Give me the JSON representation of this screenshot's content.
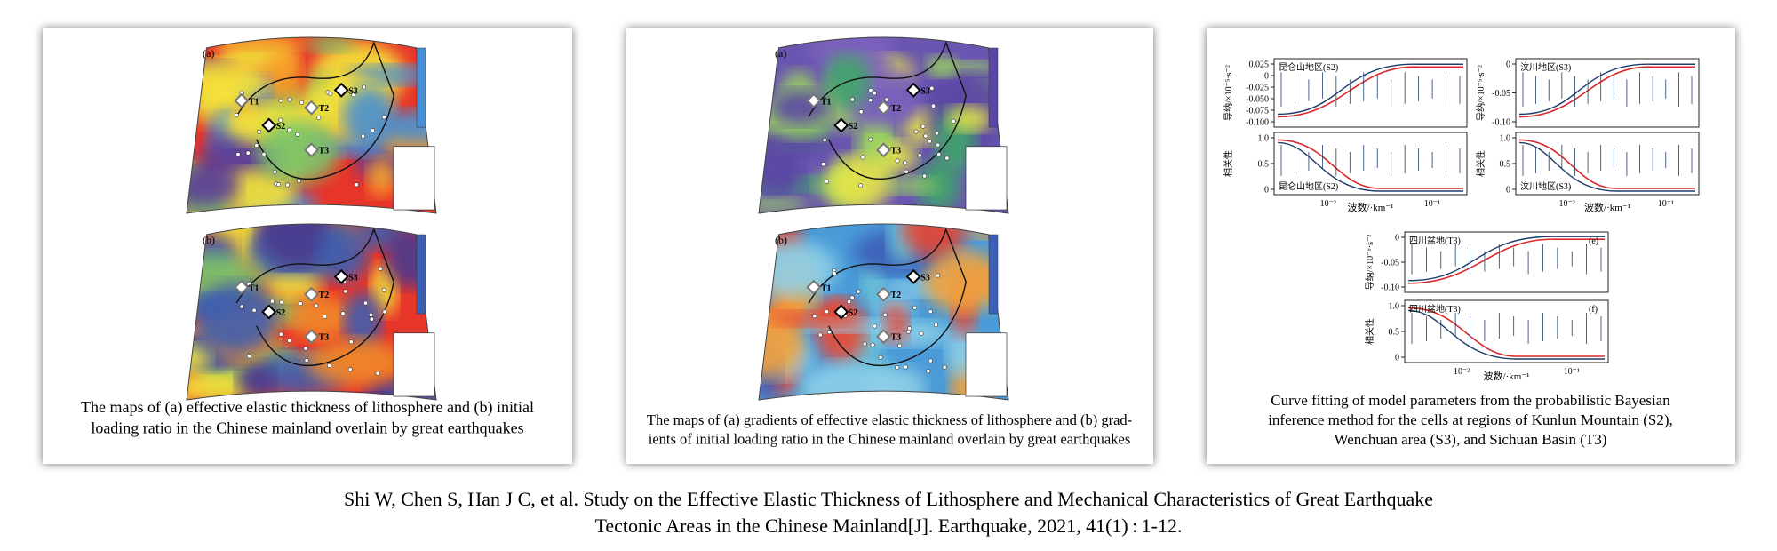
{
  "panels": [
    {
      "map_labels": [
        "(a)",
        "(b)"
      ],
      "markers": [
        "T1",
        "S2",
        "T2",
        "S3",
        "T3"
      ],
      "caption": [
        "The maps of (a) effective elastic thickness of lithosphere and (b) initial",
        "loading  ratio  in the Chinese mainland overlain by great earthquakes"
      ]
    },
    {
      "map_labels": [
        "(a)",
        "(b)"
      ],
      "markers": [
        "T1",
        "S2",
        "T2",
        "S3",
        "T3"
      ],
      "caption": [
        "The maps of (a) gradients of effective elastic thickness of lithosphere and (b) grad-",
        "ients of initial loading ratio in the Chinese mainland overlain by great earthquakes"
      ]
    },
    {
      "ylabel_admittance": "导纳/×10⁻⁵·s⁻²",
      "ylabel_coherence": "相关性",
      "xlabel": "波数/·km⁻¹",
      "xticks": [
        "10⁻²",
        "10⁻¹"
      ],
      "charts": [
        {
          "region": "昆仑山地区(S2)",
          "admittance_ticks": [
            "0.025",
            "0",
            "-0.025",
            "-0.050",
            "-0.075",
            "-0.100"
          ],
          "coherence_ticks": [
            "1.0",
            "0.5",
            "0"
          ]
        },
        {
          "region": "汶川地区(S3)",
          "admittance_ticks": [
            "0",
            "-0.05",
            "-0.10"
          ],
          "coherence_ticks": [
            "1.0",
            "0.5",
            "0"
          ]
        },
        {
          "region": "四川盆地(T3)",
          "admittance_ticks": [
            "0",
            "-0.05",
            "-0.10"
          ],
          "coherence_ticks": [
            "1.0",
            "0.5",
            "0"
          ],
          "letters": [
            "(e)",
            "(f)"
          ]
        }
      ],
      "caption": [
        "Curve fitting of model parameters from the probabilistic Bayesian",
        "inference method for  the cells at regions of Kunlun Mountain (S2),",
        "Wenchuan area (S3), and Sichuan Basin (T3)"
      ]
    }
  ],
  "citation": [
    "Shi W, Chen S, Han J C, et al. Study on the Effective Elastic Thickness of Lithosphere and Mechanical Characteristics of Great Earthquake",
    "Tectonic Areas in the Chinese Mainland[J].  Earthquake, 2021, 41(1) : 1-12."
  ]
}
